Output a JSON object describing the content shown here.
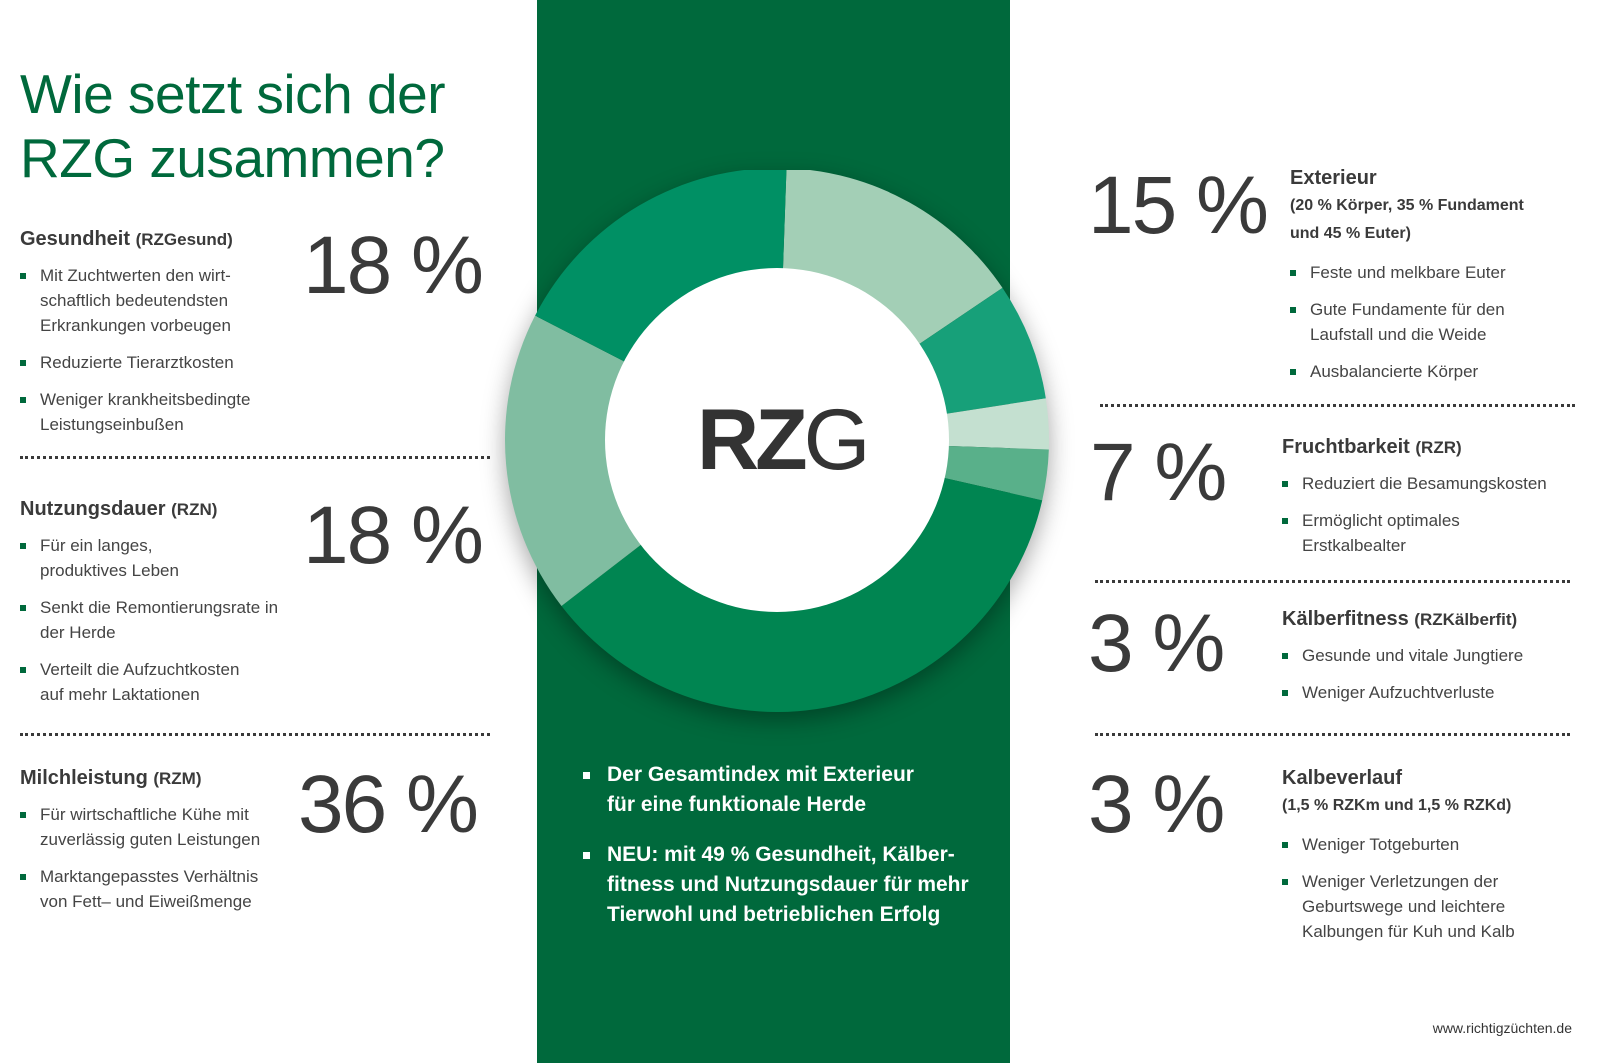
{
  "title_line1": "Wie setzt sich der",
  "title_line2": "RZG zusammen?",
  "colors": {
    "brand_green": "#00693c",
    "text": "#3a3a3a"
  },
  "left_sections": [
    {
      "name": "Gesundheit",
      "abbr": "(RZGesund)",
      "percent": "18 %",
      "bullets": [
        "Mit Zuchtwerten den wirt-\nschaftlich bedeutendsten\nErkrankungen vorbeugen",
        "Reduzierte Tierarztkosten",
        "Weniger krankheitsbedingte\nLeistungseinbußen"
      ]
    },
    {
      "name": "Nutzungsdauer",
      "abbr": "(RZN)",
      "percent": "18 %",
      "bullets": [
        "Für ein langes,\nproduktives Leben",
        "Senkt die Remontierungsrate in\nder Herde",
        "Verteilt die Aufzuchtkosten\nauf mehr Laktationen"
      ]
    },
    {
      "name": "Milchleistung",
      "abbr": "(RZM)",
      "percent": "36 %",
      "bullets": [
        "Für wirtschaftliche Kühe mit\nzuverlässig guten Leistungen",
        "Marktangepasstes Verhältnis\nvon Fett– und Eiweißmenge"
      ]
    }
  ],
  "right_sections": [
    {
      "name": "Exterieur",
      "abbr": "",
      "subtitle": "(20 % Körper, 35 % Fundament\nund 45 % Euter)",
      "percent": "15 %",
      "bullets": [
        "Feste und melkbare Euter",
        "Gute Fundamente für den\nLaufstall und die Weide",
        "Ausbalancierte Körper"
      ]
    },
    {
      "name": "Fruchtbarkeit",
      "abbr": "(RZR)",
      "subtitle": "",
      "percent": "7 %",
      "bullets": [
        "Reduziert die Besamungskosten",
        "Ermöglicht optimales\nErstkalbealter"
      ]
    },
    {
      "name": "Kälberfitness",
      "abbr": "(RZKälberfit)",
      "subtitle": "",
      "percent": "3 %",
      "bullets": [
        "Gesunde und vitale Jungtiere",
        "Weniger Aufzuchtverluste"
      ]
    },
    {
      "name": "Kalbeverlauf",
      "abbr": "",
      "subtitle": "(1,5 % RZKm und 1,5 % RZKd)",
      "percent": "3 %",
      "bullets": [
        "Weniger Totgeburten",
        "Weniger Verletzungen der\nGeburtswege und leichtere\nKalbungen für Kuh und Kalb"
      ]
    }
  ],
  "donut_label_bold": "RZ",
  "donut_label_light": "G",
  "center_bullets": [
    "Der Gesamtindex mit Exterieur\nfür eine funktionale Herde",
    "NEU: mit 49 % Gesundheit, Kälber-\nfitness und Nutzungsdauer für mehr\nTierwohl und betrieblichen Erfolg"
  ],
  "footer": "www.richtigzüchten.de",
  "chart_data": {
    "type": "pie",
    "title": "RZG",
    "categories": [
      "Exterieur",
      "Fruchtbarkeit",
      "Kälberfitness",
      "Kalbeverlauf",
      "Milchleistung",
      "Nutzungsdauer",
      "Gesundheit"
    ],
    "values": [
      15,
      7,
      3,
      3,
      36,
      18,
      18
    ],
    "colors": [
      "#a3cfb6",
      "#17a079",
      "#c4e0d0",
      "#59b08a",
      "#008551",
      "#80bda1",
      "#009064"
    ]
  }
}
